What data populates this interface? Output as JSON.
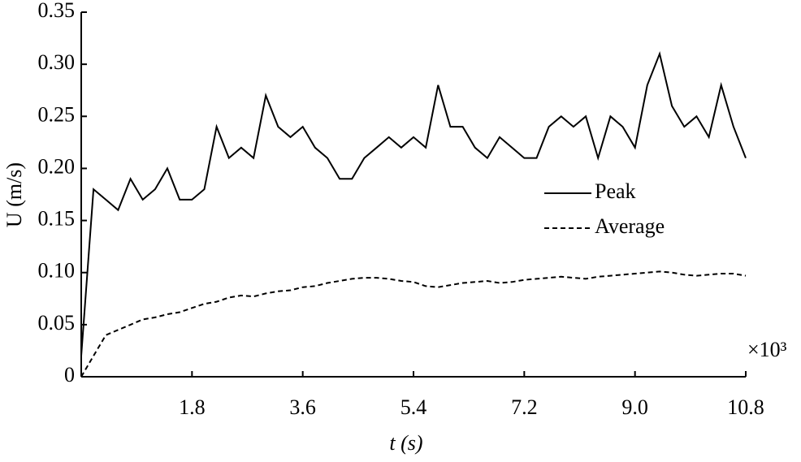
{
  "chart_data": {
    "type": "line",
    "xlabel": "t (s)",
    "ylabel": "U (m/s)",
    "annotation": "×10³",
    "x": [
      0,
      0.2,
      0.4,
      0.6,
      0.8,
      1.0,
      1.2,
      1.4,
      1.6,
      1.8,
      2.0,
      2.2,
      2.4,
      2.6,
      2.8,
      3.0,
      3.2,
      3.4,
      3.6,
      3.8,
      4.0,
      4.2,
      4.4,
      4.6,
      4.8,
      5.0,
      5.2,
      5.4,
      5.6,
      5.8,
      6.0,
      6.2,
      6.4,
      6.6,
      6.8,
      7.0,
      7.2,
      7.4,
      7.6,
      7.8,
      8.0,
      8.2,
      8.4,
      8.6,
      8.8,
      9.0,
      9.2,
      9.4,
      9.6,
      9.8,
      10.0,
      10.2,
      10.4,
      10.6,
      10.8
    ],
    "series": [
      {
        "name": "Peak",
        "color": "#000000",
        "line_style": "solid",
        "values": [
          0.02,
          0.18,
          0.17,
          0.16,
          0.19,
          0.17,
          0.18,
          0.2,
          0.17,
          0.17,
          0.18,
          0.24,
          0.21,
          0.22,
          0.21,
          0.27,
          0.24,
          0.23,
          0.24,
          0.22,
          0.21,
          0.19,
          0.19,
          0.21,
          0.22,
          0.23,
          0.22,
          0.23,
          0.22,
          0.28,
          0.24,
          0.24,
          0.22,
          0.21,
          0.23,
          0.22,
          0.21,
          0.21,
          0.24,
          0.25,
          0.24,
          0.25,
          0.21,
          0.25,
          0.24,
          0.22,
          0.28,
          0.31,
          0.26,
          0.24,
          0.25,
          0.23,
          0.28,
          0.24,
          0.21
        ]
      },
      {
        "name": "Average",
        "color": "#000000",
        "line_style": "dashed",
        "values": [
          0,
          0.02,
          0.04,
          0.045,
          0.05,
          0.055,
          0.057,
          0.06,
          0.062,
          0.066,
          0.07,
          0.072,
          0.076,
          0.078,
          0.077,
          0.08,
          0.082,
          0.083,
          0.086,
          0.087,
          0.09,
          0.092,
          0.094,
          0.095,
          0.095,
          0.094,
          0.092,
          0.091,
          0.087,
          0.086,
          0.088,
          0.09,
          0.091,
          0.092,
          0.09,
          0.091,
          0.093,
          0.094,
          0.095,
          0.096,
          0.095,
          0.094,
          0.096,
          0.097,
          0.098,
          0.099,
          0.1,
          0.101,
          0.1,
          0.098,
          0.097,
          0.098,
          0.099,
          0.099,
          0.097
        ]
      }
    ],
    "xlim": [
      0,
      10.8
    ],
    "xticks": [
      1.8,
      3.6,
      5.4,
      7.2,
      {
        "value": 9,
        "label": "9.0"
      },
      10.8
    ],
    "ylim": [
      0,
      0.35
    ],
    "yticks": [
      0,
      0.05,
      {
        "value": 0.1,
        "label": "0.10"
      },
      0.15,
      {
        "value": 0.2,
        "label": "0.20"
      },
      0.25,
      {
        "value": 0.3,
        "label": "0.30"
      },
      0.35
    ],
    "legend": "right"
  }
}
